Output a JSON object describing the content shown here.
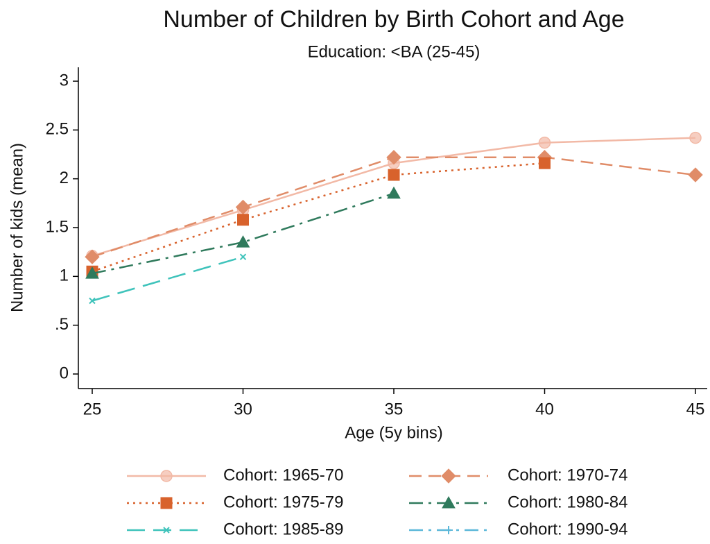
{
  "chart_data": {
    "type": "line",
    "title": "Number of Children by Birth Cohort and Age",
    "subtitle": "Education: <BA (25-45)",
    "x_label": "Age (5y bins)",
    "y_label": "Number of kids (mean)",
    "x": [
      25,
      30,
      35,
      40,
      45
    ],
    "xlim": [
      25,
      45
    ],
    "xticks": [
      25,
      30,
      35,
      40,
      45
    ],
    "ylim": [
      0,
      3
    ],
    "yticks": [
      0,
      {
        "value": 0.5,
        "label": ".5"
      },
      1,
      1.5,
      2,
      2.5,
      3
    ],
    "series": [
      {
        "name": "Cohort: 1965-70",
        "color": "#f2b9a6",
        "marker": "circle",
        "line_style": "solid",
        "values": [
          1.21,
          1.68,
          2.16,
          2.37,
          2.42
        ]
      },
      {
        "name": "Cohort: 1970-74",
        "color": "#e08c68",
        "marker": "diamond",
        "line_style": "dashed",
        "values": [
          1.2,
          1.71,
          2.22,
          2.22,
          2.04
        ]
      },
      {
        "name": "Cohort: 1975-79",
        "color": "#d8622c",
        "marker": "square",
        "line_style": "dotted",
        "values": [
          1.05,
          1.58,
          2.04,
          2.16,
          null
        ]
      },
      {
        "name": "Cohort: 1980-84",
        "color": "#2f7a5c",
        "marker": "triangle",
        "line_style": "dashdot",
        "values": [
          1.03,
          1.35,
          1.85,
          null,
          null
        ]
      },
      {
        "name": "Cohort: 1985-89",
        "color": "#3fc3bb",
        "marker": "x",
        "line_style": "longdash",
        "values": [
          0.75,
          1.2,
          null,
          null,
          null
        ]
      },
      {
        "name": "Cohort: 1990-94",
        "color": "#5cb8d9",
        "marker": "plus",
        "line_style": "dashdot",
        "values": [
          null,
          null,
          null,
          null,
          null
        ]
      }
    ]
  }
}
